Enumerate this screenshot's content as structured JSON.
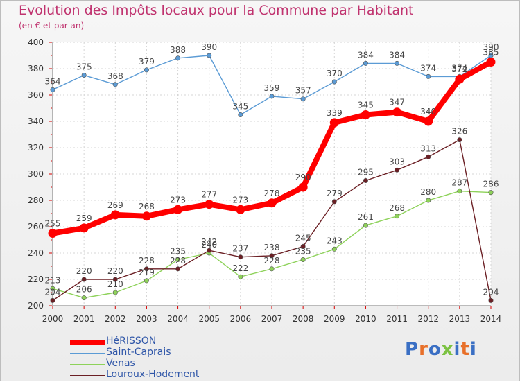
{
  "header": {
    "title": "Evolution des Impôts locaux pour la Commune par Habitant",
    "subtitle": "(en € et par an)"
  },
  "logo": {
    "letters": [
      "P",
      "r",
      "o",
      "x",
      "i",
      "t",
      "i"
    ]
  },
  "colors": {
    "title": "#c0336f",
    "axis_text": "#333333",
    "legend_text": "#2f56a8",
    "logo": [
      "#3a6fc4",
      "#e8702a",
      "#3a6fc4",
      "#7cc242",
      "#3a6fc4",
      "#e8702a",
      "#3a6fc4"
    ]
  },
  "chart_data": {
    "type": "line",
    "title": "Evolution des Impôts locaux pour la Commune par Habitant",
    "subtitle": "(en € et par an)",
    "xlabel": "",
    "ylabel": "",
    "x": [
      2000,
      2001,
      2002,
      2003,
      2004,
      2005,
      2006,
      2007,
      2008,
      2009,
      2010,
      2011,
      2012,
      2013,
      2014
    ],
    "ylim": [
      200,
      400
    ],
    "yticks": [
      200,
      220,
      240,
      260,
      280,
      300,
      320,
      340,
      360,
      380,
      400
    ],
    "grid": true,
    "legend_position": "bottom-left",
    "series": [
      {
        "name": "HéRISSON",
        "color": "#ff0000",
        "values": [
          255,
          259,
          269,
          268,
          273,
          277,
          273,
          278,
          290,
          339,
          345,
          347,
          340,
          372,
          385
        ],
        "labels": [
          "255",
          "259",
          "269",
          "268",
          "273",
          "277",
          "273",
          "278",
          "290",
          "339",
          "345",
          "347",
          "340",
          "372",
          "385"
        ]
      },
      {
        "name": "Saint-Caprais",
        "color": "#5b9bd5",
        "values": [
          364,
          375,
          368,
          379,
          388,
          390,
          345,
          359,
          357,
          370,
          384,
          384,
          374,
          374,
          390
        ],
        "labels": [
          "364",
          "375",
          "368",
          "379",
          "388",
          "390",
          "345",
          "359",
          "357",
          "370",
          "384",
          "384",
          "374",
          "374",
          "390"
        ]
      },
      {
        "name": "Venas",
        "color": "#8ed25a",
        "values": [
          213,
          206,
          210,
          219,
          235,
          240,
          222,
          228,
          235,
          243,
          261,
          268,
          280,
          287,
          286
        ],
        "labels": [
          "213",
          "206",
          "210",
          "219",
          "235",
          "240",
          "222",
          "228",
          "235",
          "243",
          "261",
          "268",
          "280",
          "287",
          "286"
        ]
      },
      {
        "name": "Louroux-Hodement",
        "color": "#6b1f24",
        "values": [
          204,
          220,
          220,
          228,
          228,
          242,
          237,
          238,
          245,
          279,
          295,
          303,
          313,
          326,
          204
        ],
        "labels": [
          "204",
          "220",
          "220",
          "228",
          "228",
          "242",
          "237",
          "238",
          "245",
          "279",
          "295",
          "303",
          "313",
          "326",
          "204"
        ]
      }
    ]
  }
}
